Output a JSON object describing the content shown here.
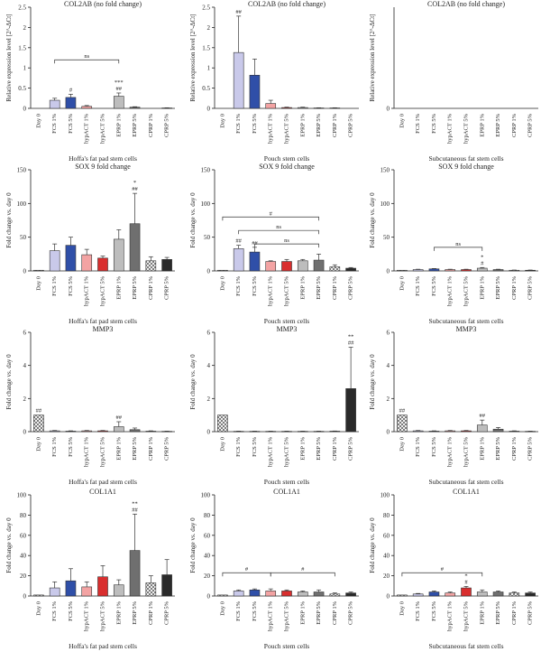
{
  "categories": [
    "Day 0",
    "FCS 1%",
    "FCS 5%",
    "hypACT 1%",
    "hypACT 5%",
    "EPRP 1%",
    "EPRP 5%",
    "CPRP 1%",
    "CPRP 5%"
  ],
  "colors": {
    "Day 0": "#ffffff",
    "FCS 1%": "#c9c9ea",
    "FCS 5%": "#2f4fa8",
    "hypACT 1%": "#f3a3a3",
    "hypACT 5%": "#d92e2e",
    "EPRP 1%": "#bdbdbd",
    "EPRP 5%": "#6f6f6f",
    "CPRP 1%": "#ffffff",
    "CPRP 5%": "#2a2a2a"
  },
  "patterns": {
    "Day 0": "checker",
    "CPRP 1%": "checker"
  },
  "chart_data": [
    {
      "type": "bar",
      "title": "COL2AB (no fold change)",
      "ylabel": "Relative expression level [2^-ΔCt]",
      "xlabel": "Hoffa's fat pad stem cells",
      "ylim": [
        0,
        2.5
      ],
      "yticks": [
        0,
        0.5,
        1.0,
        1.5,
        2.0,
        2.5
      ],
      "values": [
        0,
        0.2,
        0.27,
        0.05,
        0.0,
        0.3,
        0.03,
        0.0,
        0.01
      ],
      "errors": [
        0,
        0.05,
        0.08,
        0.02,
        0,
        0.08,
        0.01,
        0,
        0.005
      ],
      "annotations": [
        {
          "cat": 2,
          "text": "#"
        },
        {
          "cat": 5,
          "text": "##"
        },
        {
          "cat": 5,
          "text": "***"
        }
      ],
      "brackets": [
        {
          "from": 1,
          "to": 5,
          "y": 1.2,
          "label": "ns"
        }
      ]
    },
    {
      "type": "bar",
      "title": "COL2AB (no fold change)",
      "ylabel": "Relative expression level [2^-ΔCt]",
      "xlabel": "Pouch stem cells",
      "ylim": [
        0,
        2.5
      ],
      "yticks": [
        0,
        0.5,
        1.0,
        1.5,
        2.0,
        2.5
      ],
      "values": [
        0,
        1.38,
        0.82,
        0.12,
        0.02,
        0.02,
        0.01,
        0.01,
        0.0
      ],
      "errors": [
        0,
        0.9,
        0.4,
        0.08,
        0.01,
        0.01,
        0.005,
        0.005,
        0
      ],
      "annotations": [
        {
          "cat": 1,
          "text": "##"
        }
      ],
      "brackets": []
    },
    {
      "type": "bar",
      "title": "COL2AB (no fold change)",
      "ylabel": "Relative expression level [2^-ΔCt]",
      "xlabel": "Subcutaneous fat stem cells",
      "ylim": [
        0,
        2.5
      ],
      "yticks": [
        0
      ],
      "values": [
        0,
        0,
        0,
        0,
        0,
        0,
        0,
        0,
        0
      ],
      "errors": [
        0,
        0,
        0,
        0,
        0,
        0,
        0,
        0,
        0
      ],
      "annotations": [],
      "brackets": []
    },
    {
      "type": "bar",
      "title": "SOX 9 fold change",
      "ylabel": "Fold change vs. day 0",
      "xlabel": "Hoffa's fat pad stem cells",
      "ylim": [
        0,
        150
      ],
      "yticks": [
        0,
        50,
        100,
        150
      ],
      "values": [
        1,
        30,
        38,
        24,
        19,
        47,
        70,
        15,
        17
      ],
      "errors": [
        0,
        10,
        12,
        8,
        3,
        14,
        45,
        6,
        3
      ],
      "annotations": [
        {
          "cat": 6,
          "text": "##"
        },
        {
          "cat": 6,
          "text": "*"
        }
      ],
      "brackets": []
    },
    {
      "type": "bar",
      "title": "SOX 9 fold change",
      "ylabel": "Fold change vs. day 0",
      "xlabel": "Pouch stem cells",
      "ylim": [
        0,
        150
      ],
      "yticks": [
        0,
        50,
        100,
        150
      ],
      "values": [
        1,
        33,
        28,
        14,
        14,
        15,
        16,
        6,
        4
      ],
      "errors": [
        0,
        5,
        7,
        1,
        3,
        2,
        9,
        3,
        1
      ],
      "annotations": [
        {
          "cat": 1,
          "text": "##"
        },
        {
          "cat": 2,
          "text": "##"
        }
      ],
      "brackets": [
        {
          "from": 0,
          "to": 6,
          "y": 80,
          "label": "#"
        },
        {
          "from": 1,
          "to": 6,
          "y": 60,
          "label": "ns"
        },
        {
          "from": 2,
          "to": 6,
          "y": 40,
          "label": "ns"
        }
      ]
    },
    {
      "type": "bar",
      "title": "SOX 9 fold change",
      "ylabel": "Fold change vs. day 0",
      "xlabel": "Subcutaneous fat stem cells",
      "ylim": [
        0,
        150
      ],
      "yticks": [
        0,
        50,
        100,
        150
      ],
      "values": [
        1,
        2,
        3,
        2,
        2,
        4,
        2,
        1,
        1
      ],
      "errors": [
        0,
        0.5,
        0.5,
        0.5,
        0.5,
        1,
        0.5,
        0.3,
        0.3
      ],
      "annotations": [
        {
          "cat": 5,
          "text": "#"
        },
        {
          "cat": 5,
          "text": "*"
        }
      ],
      "brackets": [
        {
          "from": 2,
          "to": 5,
          "y": 35,
          "label": "ns"
        }
      ]
    },
    {
      "type": "bar",
      "title": "MMP3",
      "ylabel": "Fold change vs. day 0",
      "xlabel": "Hoffa's fat pad stem cells",
      "ylim": [
        0,
        6
      ],
      "yticks": [
        0,
        2,
        4,
        6
      ],
      "values": [
        1,
        0.05,
        0.03,
        0.05,
        0.05,
        0.3,
        0.12,
        0.03,
        0.02
      ],
      "errors": [
        0,
        0.02,
        0.02,
        0.02,
        0.02,
        0.3,
        0.1,
        0.02,
        0.01
      ],
      "annotations": [
        {
          "cat": 0,
          "text": "##"
        },
        {
          "cat": 5,
          "text": "##"
        }
      ],
      "brackets": []
    },
    {
      "type": "bar",
      "title": "MMP3",
      "ylabel": "Fold change vs. day 0",
      "xlabel": "Pouch stem cells",
      "ylim": [
        0,
        6
      ],
      "yticks": [
        0,
        2,
        4,
        6
      ],
      "values": [
        1,
        0.02,
        0.02,
        0.02,
        0.02,
        0.02,
        0.02,
        0.03,
        2.6
      ],
      "errors": [
        0,
        0.01,
        0.01,
        0.01,
        0.01,
        0.01,
        0.01,
        0.01,
        2.5
      ],
      "annotations": [
        {
          "cat": 8,
          "text": "##"
        },
        {
          "cat": 8,
          "text": "**"
        }
      ],
      "brackets": []
    },
    {
      "type": "bar",
      "title": "MMP3",
      "ylabel": "Fold change vs. day 0",
      "xlabel": "Subcutaneous fat stem cells",
      "ylim": [
        0,
        6
      ],
      "yticks": [
        0,
        2,
        4,
        6
      ],
      "values": [
        1,
        0.05,
        0.03,
        0.05,
        0.05,
        0.4,
        0.15,
        0.03,
        0.02
      ],
      "errors": [
        0,
        0.02,
        0.02,
        0.02,
        0.02,
        0.3,
        0.1,
        0.02,
        0.01
      ],
      "annotations": [
        {
          "cat": 0,
          "text": "##"
        },
        {
          "cat": 5,
          "text": "##"
        }
      ],
      "brackets": []
    },
    {
      "type": "bar",
      "title": "COL1A1",
      "ylabel": "Fold change vs. day 0",
      "xlabel": "Hoffa's fat pad stem cells",
      "ylim": [
        0,
        100
      ],
      "yticks": [
        0,
        20,
        40,
        60,
        80,
        100
      ],
      "values": [
        1,
        8,
        15,
        9,
        19,
        11,
        45,
        13,
        21
      ],
      "errors": [
        0,
        6,
        12,
        5,
        11,
        5,
        36,
        7,
        15
      ],
      "annotations": [
        {
          "cat": 6,
          "text": "##"
        },
        {
          "cat": 6,
          "text": "**"
        }
      ],
      "brackets": []
    },
    {
      "type": "bar",
      "title": "COL1A1",
      "ylabel": "Fold change vs. day 0",
      "xlabel": "Pouch stem cells",
      "ylim": [
        0,
        100
      ],
      "yticks": [
        0,
        20,
        40,
        60,
        80,
        100
      ],
      "values": [
        1,
        5,
        6,
        5,
        5,
        4,
        4,
        2,
        3
      ],
      "errors": [
        0,
        1,
        1,
        2,
        1,
        1,
        2,
        1,
        1
      ],
      "annotations": [],
      "brackets": [
        {
          "from": 0,
          "to": 3,
          "y": 23,
          "label": "#"
        },
        {
          "from": 3,
          "to": 7,
          "y": 23,
          "label": "#"
        }
      ]
    },
    {
      "type": "bar",
      "title": "COL1A1",
      "ylabel": "Fold change vs. day 0",
      "xlabel": "Subcutaneous fat stem cells",
      "ylim": [
        0,
        100
      ],
      "yticks": [
        0,
        20,
        40,
        60,
        80,
        100
      ],
      "values": [
        1,
        2,
        4,
        3,
        8,
        4,
        4,
        3,
        3
      ],
      "errors": [
        0,
        0.5,
        1,
        1,
        1.5,
        2,
        1,
        1,
        1
      ],
      "annotations": [
        {
          "cat": 4,
          "text": "#"
        },
        {
          "cat": 4,
          "text": "*"
        }
      ],
      "brackets": [
        {
          "from": 0,
          "to": 5,
          "y": 23,
          "label": "#"
        }
      ]
    }
  ]
}
